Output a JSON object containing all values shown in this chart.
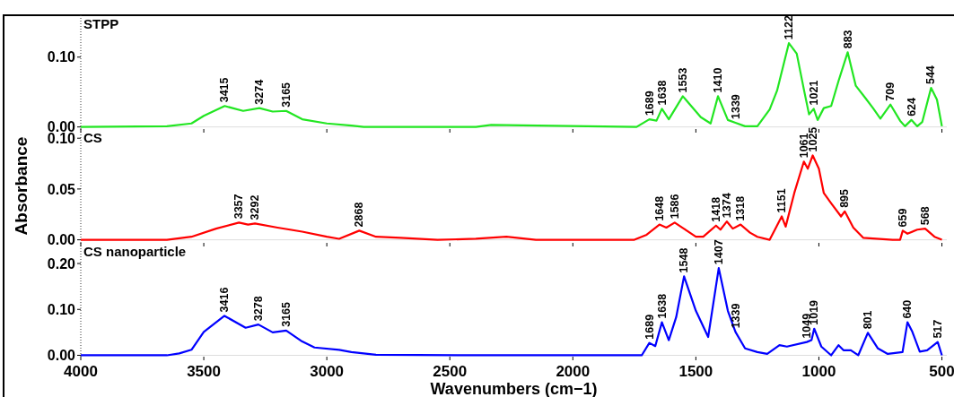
{
  "chart_data": [
    {
      "type": "line",
      "tick_labels": "y",
      "xlim": [
        4000,
        480
      ],
      "xticks": [
        4000,
        3500,
        3000,
        2500,
        2000,
        1500,
        1000,
        500
      ],
      "ylim": [
        -0.003,
        0.16
      ],
      "yticks": [
        {
          "value": 0,
          "label": "0.00"
        },
        {
          "value": 0.1,
          "label": "0.10"
        }
      ],
      "series": [
        {
          "name": "STPP",
          "color": "#22e622",
          "x": [
            4000,
            3650,
            3550,
            3500,
            3415,
            3340,
            3274,
            3220,
            3165,
            3100,
            3000,
            2900,
            2850,
            2394,
            2332,
            2142,
            1741,
            1689,
            1660,
            1638,
            1610,
            1553,
            1480,
            1440,
            1410,
            1370,
            1339,
            1300,
            1250,
            1200,
            1170,
            1122,
            1090,
            1060,
            1040,
            1021,
            1005,
            980,
            950,
            920,
            883,
            850,
            810,
            780,
            750,
            709,
            670,
            650,
            624,
            600,
            580,
            544,
            520,
            500
          ],
          "values": [
            0,
            0.001,
            0.005,
            0.016,
            0.03,
            0.023,
            0.027,
            0.022,
            0.023,
            0.011,
            0.005,
            0.002,
            0,
            0,
            0.003,
            0.002,
            0,
            0.011,
            0.009,
            0.026,
            0.011,
            0.044,
            0.014,
            0.005,
            0.044,
            0.01,
            0.006,
            0.001,
            0.001,
            0.025,
            0.052,
            0.12,
            0.105,
            0.052,
            0.018,
            0.026,
            0.01,
            0.027,
            0.03,
            0.066,
            0.107,
            0.059,
            0.041,
            0.027,
            0.012,
            0.032,
            0.009,
            0.001,
            0.01,
            0.001,
            0.007,
            0.056,
            0.039,
            0.001
          ]
        }
      ],
      "annotations": [
        {
          "text": "3415",
          "x": 3415,
          "y": 0.03
        },
        {
          "text": "3274",
          "x": 3274,
          "y": 0.027
        },
        {
          "text": "3165",
          "x": 3165,
          "y": 0.023
        },
        {
          "text": "1689",
          "x": 1689,
          "y": 0.011
        },
        {
          "text": "1638",
          "x": 1638,
          "y": 0.026
        },
        {
          "text": "1553",
          "x": 1553,
          "y": 0.044
        },
        {
          "text": "1410",
          "x": 1410,
          "y": 0.044
        },
        {
          "text": "1339",
          "x": 1339,
          "y": 0.006
        },
        {
          "text": "1122",
          "x": 1122,
          "y": 0.12
        },
        {
          "text": "1021",
          "x": 1021,
          "y": 0.026
        },
        {
          "text": "883",
          "x": 883,
          "y": 0.107
        },
        {
          "text": "709",
          "x": 709,
          "y": 0.032
        },
        {
          "text": "624",
          "x": 624,
          "y": 0.01
        },
        {
          "text": "544",
          "x": 544,
          "y": 0.056
        }
      ]
    },
    {
      "type": "line",
      "tick_labels": "y",
      "ylabel": "Absorbance",
      "xlim": [
        4000,
        480
      ],
      "xticks": [
        4000,
        3500,
        3000,
        2500,
        2000,
        1500,
        1000,
        500
      ],
      "ylim": [
        -0.003,
        0.109
      ],
      "yticks": [
        {
          "value": 0,
          "label": "0.00"
        },
        {
          "value": 0.05,
          "label": "0.05"
        },
        {
          "value": 0.1,
          "label": "0.10"
        }
      ],
      "series": [
        {
          "name": "CS",
          "color": "#ff0000",
          "x": [
            4000,
            3650,
            3550,
            3450,
            3357,
            3320,
            3292,
            3200,
            3100,
            3000,
            2950,
            2868,
            2800,
            2700,
            2550,
            2394,
            2270,
            2150,
            1750,
            1700,
            1648,
            1620,
            1586,
            1500,
            1470,
            1418,
            1400,
            1374,
            1350,
            1318,
            1280,
            1250,
            1200,
            1151,
            1135,
            1100,
            1061,
            1045,
            1025,
            1000,
            980,
            950,
            910,
            895,
            860,
            820,
            700,
            670,
            659,
            640,
            600,
            568,
            530,
            500
          ],
          "values": [
            0,
            0,
            0.003,
            0.011,
            0.017,
            0.015,
            0.016,
            0.012,
            0.008,
            0.003,
            0.001,
            0.009,
            0.003,
            0.002,
            0,
            0.001,
            0.003,
            0,
            0,
            0.005,
            0.015,
            0.012,
            0.017,
            0.003,
            0.003,
            0.014,
            0.01,
            0.018,
            0.011,
            0.015,
            0.007,
            0.003,
            0,
            0.023,
            0.013,
            0.046,
            0.077,
            0.07,
            0.083,
            0.07,
            0.046,
            0.036,
            0.023,
            0.028,
            0.012,
            0.002,
            0,
            0,
            0.009,
            0.006,
            0.01,
            0.011,
            0.003,
            0
          ]
        }
      ],
      "annotations": [
        {
          "text": "3357",
          "x": 3357,
          "y": 0.017
        },
        {
          "text": "3292",
          "x": 3292,
          "y": 0.016
        },
        {
          "text": "2868",
          "x": 2868,
          "y": 0.009
        },
        {
          "text": "1648",
          "x": 1648,
          "y": 0.015
        },
        {
          "text": "1586",
          "x": 1586,
          "y": 0.017
        },
        {
          "text": "1418",
          "x": 1418,
          "y": 0.014
        },
        {
          "text": "1374",
          "x": 1374,
          "y": 0.018
        },
        {
          "text": "1318",
          "x": 1318,
          "y": 0.015
        },
        {
          "text": "1151",
          "x": 1151,
          "y": 0.023
        },
        {
          "text": "1061",
          "x": 1061,
          "y": 0.077
        },
        {
          "text": "1025",
          "x": 1025,
          "y": 0.083
        },
        {
          "text": "895",
          "x": 895,
          "y": 0.028
        },
        {
          "text": "659",
          "x": 659,
          "y": 0.009
        },
        {
          "text": "568",
          "x": 568,
          "y": 0.011
        }
      ]
    },
    {
      "type": "line",
      "xlabel": "Wavenumbers (cm−1)",
      "xlim": [
        4000,
        480
      ],
      "xticks": [
        4000,
        3500,
        3000,
        2500,
        2000,
        1500,
        1000,
        500
      ],
      "ylim": [
        -0.003,
        0.245
      ],
      "yticks": [
        {
          "value": 0,
          "label": "0.00"
        },
        {
          "value": 0.1,
          "label": "0.10"
        },
        {
          "value": 0.2,
          "label": "0.20"
        }
      ],
      "series": [
        {
          "name": "CS nanoparticle",
          "color": "#0000ff",
          "x": [
            4000,
            3650,
            3600,
            3550,
            3500,
            3416,
            3330,
            3278,
            3220,
            3165,
            3100,
            3050,
            2950,
            2900,
            2800,
            2400,
            1720,
            1689,
            1665,
            1638,
            1610,
            1580,
            1548,
            1500,
            1450,
            1407,
            1370,
            1339,
            1300,
            1250,
            1210,
            1160,
            1130,
            1049,
            1030,
            1019,
            990,
            950,
            920,
            900,
            870,
            840,
            801,
            760,
            720,
            660,
            640,
            620,
            590,
            560,
            517,
            500
          ],
          "values": [
            0,
            0,
            0.004,
            0.012,
            0.051,
            0.086,
            0.06,
            0.067,
            0.05,
            0.054,
            0.03,
            0.017,
            0.012,
            0.007,
            0.001,
            0,
            0,
            0.027,
            0.02,
            0.072,
            0.033,
            0.083,
            0.172,
            0.097,
            0.04,
            0.19,
            0.097,
            0.051,
            0.015,
            0.007,
            0.003,
            0.022,
            0.019,
            0.029,
            0.033,
            0.058,
            0.019,
            0,
            0.022,
            0.011,
            0.011,
            0,
            0.049,
            0.015,
            0.003,
            0.007,
            0.072,
            0.051,
            0.008,
            0.011,
            0.029,
            0
          ]
        }
      ],
      "annotations": [
        {
          "text": "3416",
          "x": 3416,
          "y": 0.086
        },
        {
          "text": "3278",
          "x": 3278,
          "y": 0.067
        },
        {
          "text": "3165",
          "x": 3165,
          "y": 0.054
        },
        {
          "text": "1689",
          "x": 1689,
          "y": 0.027
        },
        {
          "text": "1638",
          "x": 1638,
          "y": 0.072
        },
        {
          "text": "1548",
          "x": 1548,
          "y": 0.172
        },
        {
          "text": "1407",
          "x": 1407,
          "y": 0.19
        },
        {
          "text": "1339",
          "x": 1339,
          "y": 0.051
        },
        {
          "text": "1049",
          "x": 1049,
          "y": 0.029
        },
        {
          "text": "1019",
          "x": 1019,
          "y": 0.058
        },
        {
          "text": "801",
          "x": 801,
          "y": 0.049
        },
        {
          "text": "640",
          "x": 640,
          "y": 0.072
        },
        {
          "text": "517",
          "x": 517,
          "y": 0.029
        }
      ]
    }
  ]
}
